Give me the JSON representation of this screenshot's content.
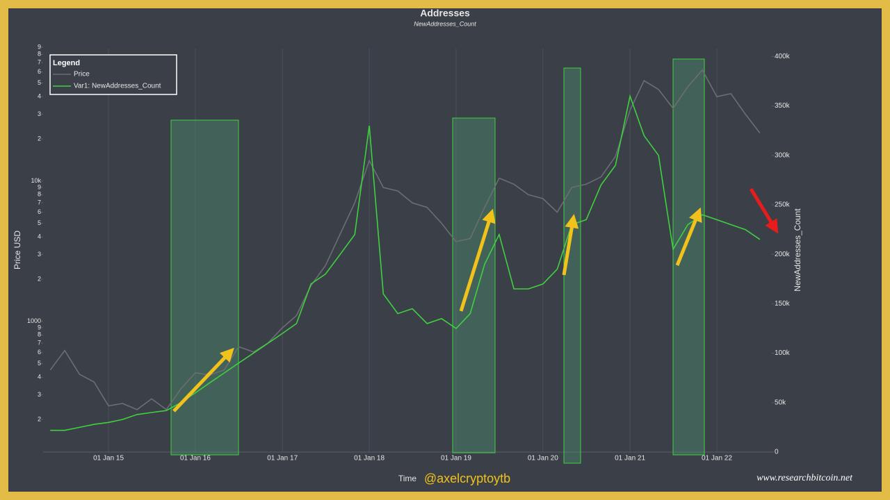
{
  "chart_data": {
    "type": "line",
    "title": "Addresses",
    "subtitle": "NewAddresses_Count",
    "xlabel": "Time",
    "ylabel": "Price USD",
    "y2label": "NewAddresses_Count",
    "legend_title": "Legend",
    "legend": "top-left",
    "grid": true,
    "ylog": true,
    "annotations": [
      "@axelcryptoytb",
      "www.researchbitcoin.net"
    ],
    "x": [
      "2014-05-01",
      "2014-07-01",
      "2014-09-01",
      "2014-11-01",
      "2015-01-01",
      "2015-03-01",
      "2015-05-01",
      "2015-07-01",
      "2015-09-01",
      "2015-11-01",
      "2016-01-01",
      "2016-03-01",
      "2016-05-01",
      "2016-07-01",
      "2016-09-01",
      "2016-11-01",
      "2017-01-01",
      "2017-03-01",
      "2017-05-01",
      "2017-07-01",
      "2017-09-01",
      "2017-11-01",
      "2018-01-01",
      "2018-03-01",
      "2018-05-01",
      "2018-07-01",
      "2018-09-01",
      "2018-11-01",
      "2019-01-01",
      "2019-03-01",
      "2019-05-01",
      "2019-07-01",
      "2019-09-01",
      "2019-11-01",
      "2020-01-01",
      "2020-03-01",
      "2020-05-01",
      "2020-07-01",
      "2020-09-01",
      "2020-11-01",
      "2021-01-01",
      "2021-03-01",
      "2021-05-01",
      "2021-07-01",
      "2021-09-01",
      "2021-11-01",
      "2022-01-01",
      "2022-03-01",
      "2022-05-01",
      "2022-07-01"
    ],
    "series": [
      {
        "name": "Price",
        "color": "#6b6e74",
        "axis": "y",
        "values": [
          450,
          620,
          420,
          370,
          250,
          260,
          235,
          280,
          235,
          330,
          430,
          415,
          450,
          660,
          605,
          700,
          900,
          1100,
          1800,
          2500,
          4200,
          7000,
          14000,
          9000,
          8500,
          7000,
          6500,
          5000,
          3700,
          3900,
          6500,
          10500,
          9500,
          8000,
          7500,
          6000,
          9000,
          9500,
          10700,
          15000,
          32000,
          52000,
          45000,
          33000,
          47000,
          62000,
          40000,
          42000,
          30000,
          22000
        ]
      },
      {
        "name": "Var1: NewAddresses_Count",
        "color": "#3fd13f",
        "axis": "y2",
        "values": [
          22000,
          22000,
          25000,
          28000,
          30000,
          33000,
          38000,
          40000,
          42000,
          50000,
          60000,
          70000,
          80000,
          90000,
          100000,
          110000,
          120000,
          130000,
          170000,
          180000,
          200000,
          220000,
          330000,
          160000,
          140000,
          145000,
          130000,
          135000,
          125000,
          140000,
          190000,
          220000,
          165000,
          165000,
          170000,
          185000,
          230000,
          235000,
          270000,
          290000,
          360000,
          320000,
          300000,
          205000,
          230000,
          240000,
          235000,
          230000,
          225000,
          215000
        ]
      }
    ],
    "xlim": [
      "2014-04-01",
      "2022-08-20"
    ],
    "xticks": [
      {
        "value": "2015-01-01",
        "label": "01 Jan 15"
      },
      {
        "value": "2016-01-01",
        "label": "01 Jan 16"
      },
      {
        "value": "2017-01-01",
        "label": "01 Jan 17"
      },
      {
        "value": "2018-01-01",
        "label": "01 Jan 18"
      },
      {
        "value": "2019-01-01",
        "label": "01 Jan 19"
      },
      {
        "value": "2020-01-01",
        "label": "01 Jan 20"
      },
      {
        "value": "2021-01-01",
        "label": "01 Jan 21"
      },
      {
        "value": "2022-01-01",
        "label": "01 Jan 22"
      }
    ],
    "ylim": [
      117,
      88000
    ],
    "yticks": [
      {
        "value": 200,
        "label": "2"
      },
      {
        "value": 300,
        "label": "3"
      },
      {
        "value": 400,
        "label": "4"
      },
      {
        "value": 500,
        "label": "5"
      },
      {
        "value": 600,
        "label": "6"
      },
      {
        "value": 700,
        "label": "7"
      },
      {
        "value": 800,
        "label": "8"
      },
      {
        "value": 900,
        "label": "9"
      },
      1000,
      {
        "value": 2000,
        "label": "2"
      },
      {
        "value": 3000,
        "label": "3"
      },
      {
        "value": 4000,
        "label": "4"
      },
      {
        "value": 5000,
        "label": "5"
      },
      {
        "value": 6000,
        "label": "6"
      },
      {
        "value": 7000,
        "label": "7"
      },
      {
        "value": 8000,
        "label": "8"
      },
      {
        "value": 9000,
        "label": "9"
      },
      {
        "value": 10000,
        "label": "10k"
      },
      {
        "value": 20000,
        "label": "2"
      },
      {
        "value": 30000,
        "label": "3"
      },
      {
        "value": 40000,
        "label": "4"
      },
      {
        "value": 50000,
        "label": "5"
      },
      {
        "value": 60000,
        "label": "6"
      },
      {
        "value": 70000,
        "label": "7"
      },
      {
        "value": 80000,
        "label": "8"
      },
      {
        "value": 90000,
        "label": "9"
      }
    ],
    "y2lim": [
      0,
      408000
    ],
    "y2ticks": [
      0,
      {
        "value": 50000,
        "label": "50k"
      },
      {
        "value": 100000,
        "label": "100k"
      },
      {
        "value": 150000,
        "label": "150k"
      },
      {
        "value": 200000,
        "label": "200k"
      },
      {
        "value": 250000,
        "label": "250k"
      },
      {
        "value": 300000,
        "label": "300k"
      },
      {
        "value": 350000,
        "label": "350k"
      },
      {
        "value": 400000,
        "label": "400k"
      }
    ]
  }
}
